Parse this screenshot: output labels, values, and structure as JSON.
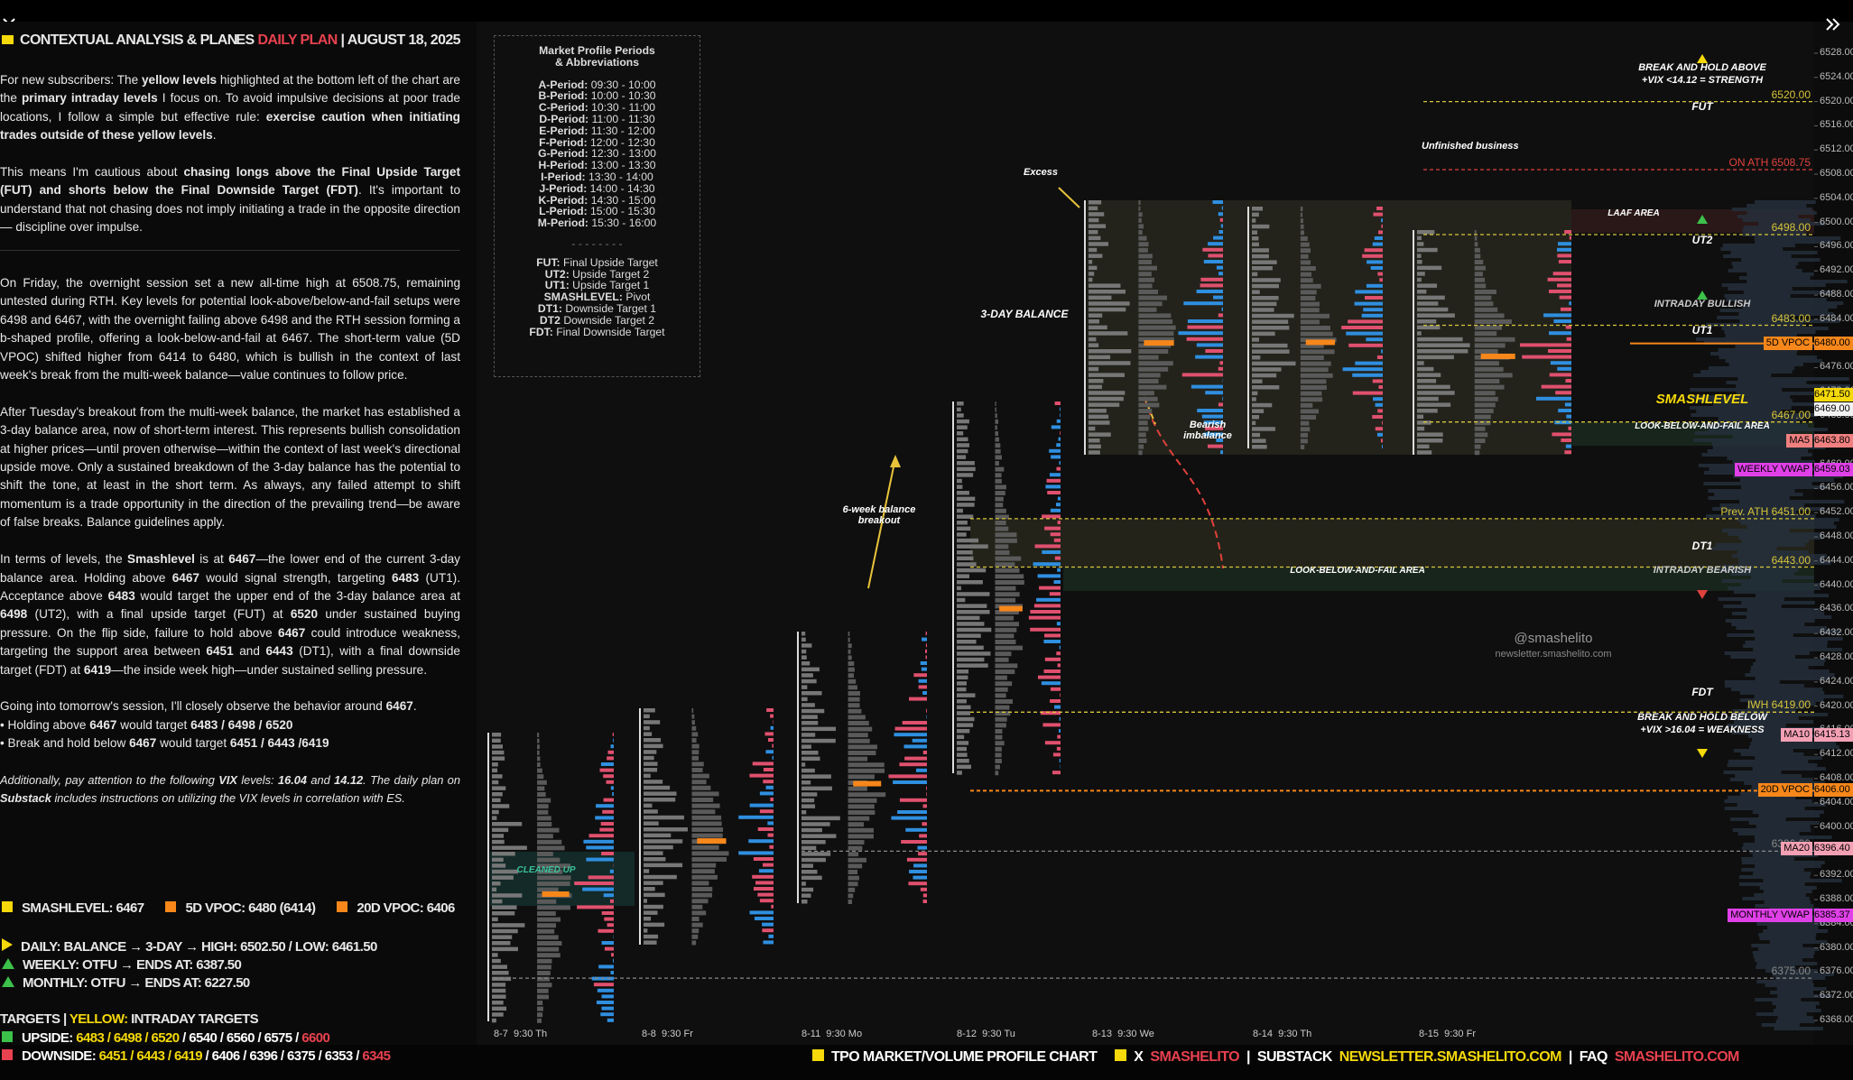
{
  "header": {
    "title": "CONTEXTUAL ANALYSIS & PLAN",
    "es": "ES",
    "plan": "DAILY PLAN",
    "sep": "|",
    "date": "AUGUST 18, 2025"
  },
  "paragraphs": [
    [
      {
        "t": "For new subscribers: The "
      },
      {
        "t": "yellow levels",
        "bold": true
      },
      {
        "t": " highlighted at the bottom left of the chart are the "
      },
      {
        "t": "primary intraday levels",
        "bold": true
      },
      {
        "t": " I focus on. To avoid impulsive decisions at poor trade locations, I follow a simple but effective rule: "
      },
      {
        "t": "exercise caution when initiating trades outside of these yellow levels",
        "bold": true
      },
      {
        "t": "."
      }
    ],
    [
      {
        "t": "This means I'm cautious about "
      },
      {
        "t": "chasing longs above the Final Upside Target (FUT) and shorts below the Final Downside Target (FDT)",
        "bold": true
      },
      {
        "t": ". It's important to understand that not chasing does not imply initiating a trade in the opposite direction — discipline over impulse."
      }
    ],
    [
      {
        "t": "On Friday, the overnight session set a new all-time high at 6508.75, remaining untested during RTH. Key levels for potential look-above/below-and-fail setups were 6498 and 6467, with the overnight failing above 6498 and the RTH session forming a b-shaped profile, offering a look-below-and-fail at 6467. The short-term value (5D VPOC) shifted higher from 6414 to 6480, which is bullish in the context of last week's break from the multi-week balance—value continues to follow price."
      }
    ],
    [
      {
        "t": "After Tuesday's breakout from the multi-week balance, the market has established a 3-day balance area, now of short-term interest. This represents bullish consolidation at higher prices—until proven otherwise—within the context of last week's directional upside move. Only a sustained breakdown of the 3-day balance has the potential to shift the tone, at least in the short term. As always, any failed attempt to shift momentum is a trade opportunity in the direction of the prevailing trend—be aware of false breaks. Balance guidelines apply."
      }
    ],
    [
      {
        "t": "In terms of levels, the "
      },
      {
        "t": "Smashlevel",
        "bold": true
      },
      {
        "t": " is at "
      },
      {
        "t": "6467",
        "bold": true
      },
      {
        "t": "—the lower end of the current 3-day balance area. Holding above "
      },
      {
        "t": "6467",
        "bold": true
      },
      {
        "t": " would signal strength, targeting "
      },
      {
        "t": "6483",
        "bold": true
      },
      {
        "t": " (UT1). Acceptance above "
      },
      {
        "t": "6483",
        "bold": true
      },
      {
        "t": " would target the upper end of the 3-day balance area at "
      },
      {
        "t": "6498",
        "bold": true
      },
      {
        "t": " (UT2), with a final upside target (FUT) at "
      },
      {
        "t": "6520",
        "bold": true
      },
      {
        "t": " under sustained buying pressure. On the flip side, failure to hold above "
      },
      {
        "t": "6467",
        "bold": true
      },
      {
        "t": " could introduce weakness, targeting the support area between "
      },
      {
        "t": "6451",
        "bold": true
      },
      {
        "t": " and "
      },
      {
        "t": "6443",
        "bold": true
      },
      {
        "t": " (DT1), with a final downside target (FDT) at "
      },
      {
        "t": "6419",
        "bold": true
      },
      {
        "t": "—the inside week high—under sustained selling pressure."
      }
    ],
    [
      {
        "t": "Going into tomorrow's session, I'll closely observe the behavior around "
      },
      {
        "t": "6467",
        "bold": true
      },
      {
        "t": "."
      }
    ]
  ],
  "bullets": [
    [
      {
        "t": "• Holding above "
      },
      {
        "t": "6467",
        "bold": true
      },
      {
        "t": " would target "
      },
      {
        "t": "6483 / 6498 / 6520",
        "bold": true
      }
    ],
    [
      {
        "t": "• Break and hold below "
      },
      {
        "t": "6467",
        "bold": true
      },
      {
        "t": " would target "
      },
      {
        "t": "6451 / 6443 /6419",
        "bold": true
      }
    ]
  ],
  "vix_note": [
    {
      "t": "Additionally, pay attention to the following "
    },
    {
      "t": "VIX",
      "bold": true
    },
    {
      "t": " levels: "
    },
    {
      "t": "16.04",
      "bold": true
    },
    {
      "t": " and "
    },
    {
      "t": "14.12",
      "bold": true
    },
    {
      "t": ". The daily plan on "
    },
    {
      "t": "Substack",
      "bold": true
    },
    {
      "t": " includes instructions on utilizing the VIX levels in correlation with ES."
    }
  ],
  "legend": [
    {
      "text": "SMASHLEVEL: 6467",
      "color": "#f5d90a"
    },
    {
      "text": "5D VPOC: 6480 (6414)",
      "color": "#f7871a"
    },
    {
      "text": "20D VPOC: 6406",
      "color": "#f7871a"
    }
  ],
  "trend": [
    {
      "text": "DAILY: BALANCE → 3-DAY → HIGH: 6502.50 / LOW: 6461.50",
      "color": "#f5d90a",
      "dir": "right"
    },
    {
      "text": "WEEKLY: OTFU → ENDS AT: 6387.50",
      "color": "#3cc14a",
      "dir": "up"
    },
    {
      "text": "MONTHLY: OTFU → ENDS AT: 6227.50",
      "color": "#3cc14a",
      "dir": "up"
    }
  ],
  "targets": {
    "title": "TARGETS",
    "sep": "|",
    "yellow": "YELLOW:",
    "rest": "INTRADAY TARGETS",
    "rows": [
      {
        "marker": "#3cc14a",
        "parts": [
          {
            "t": "UPSIDE: ",
            "c": "#ffffff"
          },
          {
            "t": "6483 / 6498 / 6520",
            "c": "#f5d90a"
          },
          {
            "t": " / 6540 / 6560 / 6575 / ",
            "c": "#ffffff"
          },
          {
            "t": "6600",
            "c": "#e8414f"
          }
        ]
      },
      {
        "marker": "#e8414f",
        "parts": [
          {
            "t": "DOWNSIDE: ",
            "c": "#ffffff"
          },
          {
            "t": "6451 / 6443 / 6419",
            "c": "#f5d90a"
          },
          {
            "t": " / 6406 / 6396 / 6375 / 6353 / ",
            "c": "#ffffff"
          },
          {
            "t": "6345",
            "c": "#e8414f"
          }
        ]
      }
    ]
  },
  "periods_box": {
    "title": "Market Profile Periods",
    "subtitle": "& Abbreviations",
    "periods": [
      {
        "k": "A-Period:",
        "v": " 09:30 - 10:00"
      },
      {
        "k": "B-Period:",
        "v": " 10:00 - 10:30"
      },
      {
        "k": "C-Period:",
        "v": " 10:30 - 11:00"
      },
      {
        "k": "D-Period:",
        "v": " 11:00 - 11:30"
      },
      {
        "k": "E-Period:",
        "v": " 11:30 - 12:00"
      },
      {
        "k": "F-Period:",
        "v": " 12:00 - 12:30"
      },
      {
        "k": "G-Period:",
        "v": " 12:30 - 13:00"
      },
      {
        "k": "H-Period:",
        "v": " 13:00 - 13:30"
      },
      {
        "k": "I-Period:",
        "v": " 13:30 - 14:00"
      },
      {
        "k": "J-Period:",
        "v": " 14:00 - 14:30"
      },
      {
        "k": "K-Period:",
        "v": " 14:30 - 15:00"
      },
      {
        "k": "L-Period:",
        "v": " 15:00 - 15:30"
      },
      {
        "k": "M-Period:",
        "v": " 15:30 - 16:00"
      }
    ],
    "divider": "- - - - - - - -",
    "abbreviations": [
      {
        "k": "FUT:",
        "v": " Final Upside Target"
      },
      {
        "k": "UT2:",
        "v": " Upside Target 2"
      },
      {
        "k": "UT1:",
        "v": " Upside Target 1"
      },
      {
        "k": "SMASHLEVEL:",
        "v": " Pivot"
      },
      {
        "k": "DT1:",
        "v": " Downside Target 1"
      },
      {
        "k": "DT2",
        "v": " Downside Target 2"
      },
      {
        "k": "FDT:",
        "v": " Final Downside Target"
      }
    ]
  },
  "price_axis": [
    "6528.00",
    "6524.00",
    "6520.00",
    "6516.00",
    "6512.00",
    "6508.00",
    "6504.00",
    "6500.00",
    "6496.00",
    "6492.00",
    "6488.00",
    "6484.00",
    "6480.00",
    "6476.00",
    "6472.00",
    "6468.00",
    "6464.00",
    "6460.00",
    "6456.00",
    "6452.00",
    "6448.00",
    "6444.00",
    "6440.00",
    "6436.00",
    "6432.00",
    "6428.00",
    "6424.00",
    "6420.00",
    "6416.00",
    "6412.00",
    "6408.00",
    "6404.00",
    "6400.00",
    "6396.00",
    "6392.00",
    "6388.00",
    "6384.00",
    "6380.00",
    "6376.00",
    "6372.00",
    "6368.00"
  ],
  "levels": [
    {
      "text": "6520.00",
      "color": "#d8c53a"
    },
    {
      "text": "ON ATH 6508.75",
      "color": "#e0413c"
    },
    {
      "text": "6498.00",
      "color": "#d8c53a"
    },
    {
      "text": "6483.00",
      "color": "#d8c53a"
    },
    {
      "text": "6467.00",
      "color": "#d8c53a"
    },
    {
      "text": "Prev. ATH 6451.00",
      "color": "#d8c53a"
    },
    {
      "text": "6443.00",
      "color": "#d8c53a"
    },
    {
      "text": "IWH 6419.00",
      "color": "#d8c53a"
    },
    {
      "text": "6396.00",
      "color": "#888888"
    },
    {
      "text": "6375.00",
      "color": "#888888"
    }
  ],
  "badges": [
    {
      "name": "5D VPOC",
      "value": "6480.00",
      "color": "#f7871a"
    },
    {
      "value": "6471.50",
      "color": "#f5d90a"
    },
    {
      "value": "6469.00",
      "color": "#f2f2f2"
    },
    {
      "name": "MA5",
      "value": "6463.80",
      "color": "#f08080"
    },
    {
      "name": "WEEKLY VWAP",
      "value": "6459.03",
      "color": "#e040e8"
    },
    {
      "name": "MA10",
      "value": "6415.13",
      "color": "#f4a0b4"
    },
    {
      "name": "20D VPOC",
      "value": "6406.00",
      "color": "#f7871a"
    },
    {
      "name": "MA20",
      "value": "6396.40",
      "color": "#f4a0b4"
    },
    {
      "name": "MONTHLY VWAP",
      "value": "6385.37",
      "color": "#e040e8"
    }
  ],
  "annotations": [
    "BREAK AND HOLD ABOVE",
    "+VIX <14.12 = STRENGTH",
    "FUT",
    "Unfinished business",
    "LAAF AREA",
    "UT2",
    "INTRADAY BULLISH",
    "UT1",
    "SMASHLEVEL",
    "LOOK-BELOW-AND-FAIL AREA",
    "DT1",
    "LOOK-BELOW-AND-FAIL AREA",
    "INTRADAY BEARISH",
    "@smashelito",
    "newsletter.smashelito.com",
    "FDT",
    "BREAK AND HOLD BELOW",
    "+VIX >16.04 = WEAKNESS",
    "Excess",
    "3-DAY BALANCE",
    "Bearish",
    "imbalance",
    "6-week balance",
    "breakout",
    "CLEANED UP"
  ],
  "sessions": [
    "8-7  9:30 Th",
    "8-8  9:30 Fr",
    "8-11  9:30 Mo",
    "8-12  9:30 Tu",
    "8-13  9:30 We",
    "8-14  9:30 Th",
    "8-15  9:30 Fr"
  ],
  "footer": [
    {
      "t": "TPO MARKET/VOLUME PROFILE CHART",
      "c": "#ffffff",
      "sq": true
    },
    {
      "t": "X",
      "c": "#ffffff",
      "sq": true
    },
    {
      "t": "SMASHELITO",
      "c": "#e8414f"
    },
    {
      "t": "|",
      "c": "#ffffff"
    },
    {
      "t": "SUBSTACK",
      "c": "#ffffff"
    },
    {
      "t": "NEWSLETTER.SMASHELITO.COM",
      "c": "#f5d90a"
    },
    {
      "t": "|",
      "c": "#ffffff"
    },
    {
      "t": "FAQ",
      "c": "#ffffff"
    },
    {
      "t": "SMASHELITO.COM",
      "c": "#e8414f"
    }
  ]
}
